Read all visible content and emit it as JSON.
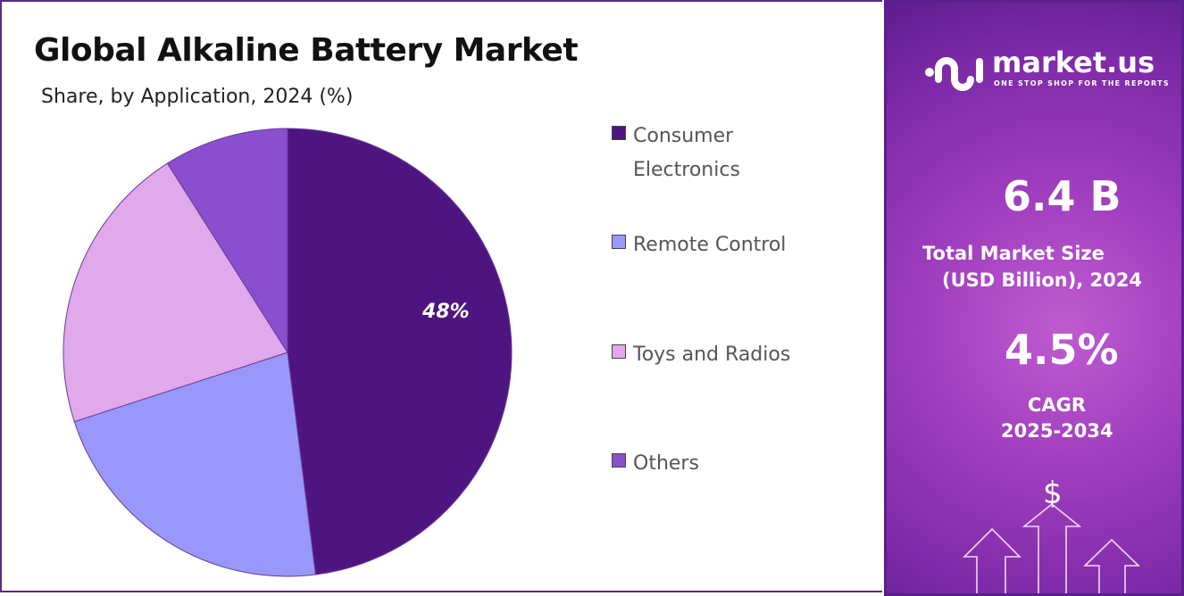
{
  "chart_data": {
    "type": "pie",
    "title": "Global Alkaline Battery Market",
    "subtitle": "Share, by Application, 2024 (%)",
    "categories": [
      "Consumer Electronics",
      "Remote Control",
      "Toys and Radios",
      "Others"
    ],
    "values": [
      48,
      22,
      21,
      9
    ],
    "data_labels": [
      "48%",
      "",
      "",
      ""
    ],
    "colors": [
      "#4e1580",
      "#9a97fb",
      "#e0a9ec",
      "#8a4fcf"
    ],
    "legend_position": "right"
  },
  "legend": [
    "Consumer",
    "Electronics",
    "Remote Control",
    "Toys and Radios",
    "Others"
  ],
  "panel": {
    "logo_brand": "market.us",
    "logo_tagline": "ONE STOP SHOP FOR THE REPORTS",
    "market_size": "6.4 B",
    "market_size_label_1": "Total Market Size",
    "market_size_label_2": "(USD Billion), 2024",
    "cagr": "4.5%",
    "cagr_label": "CAGR",
    "cagr_period": "2025-2034",
    "dollar_symbol": "$"
  }
}
